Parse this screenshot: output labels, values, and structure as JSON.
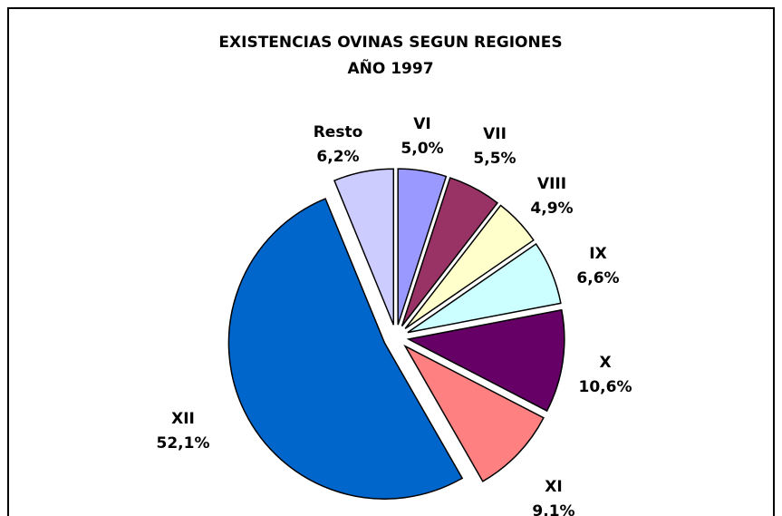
{
  "chart_data": {
    "type": "pie",
    "title": "EXISTENCIAS OVINAS SEGUN REGIONES",
    "subtitle": "AÑO 1997",
    "categories": [
      "VI",
      "VII",
      "VIII",
      "IX",
      "X",
      "XI",
      "XII",
      "Resto"
    ],
    "values": [
      5.0,
      5.5,
      4.9,
      6.6,
      10.6,
      9.1,
      52.1,
      6.2
    ],
    "value_labels": [
      "5,0%",
      "5,5%",
      "4,9%",
      "6,6%",
      "10,6%",
      "9,1%",
      "52,1%",
      "6,2%"
    ],
    "colors": [
      "#9999ff",
      "#993366",
      "#ffffcc",
      "#ccffff",
      "#660066",
      "#ff8080",
      "#0066cc",
      "#ccccff"
    ]
  }
}
